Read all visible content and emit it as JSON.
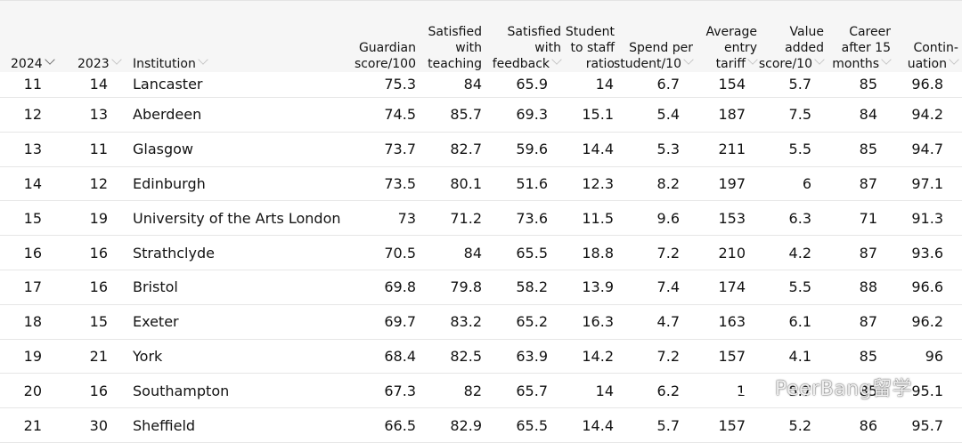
{
  "columns": {
    "y2024": "2024",
    "y2023": "2023",
    "institution": "Institution",
    "guardian": [
      "Guardian",
      "score/100"
    ],
    "teaching": [
      "Satisfied",
      "with",
      "teaching"
    ],
    "feedback": [
      "Satisfied",
      "with",
      "feedback"
    ],
    "ratio": [
      "Student",
      "to staff",
      "ratio"
    ],
    "spend": [
      "Spend per",
      "student/10"
    ],
    "tariff": [
      "Average",
      "entry",
      "tariff"
    ],
    "value": [
      "Value",
      "added",
      "score/10"
    ],
    "career": [
      "Career",
      "after 15",
      "months"
    ],
    "contin": [
      "Contin-",
      "uation"
    ]
  },
  "rows": [
    {
      "y2024": "11",
      "y2023": "14",
      "institution": "Lancaster",
      "guardian": "75.3",
      "teaching": "84",
      "feedback": "65.9",
      "ratio": "14",
      "spend": "6.7",
      "tariff": "154",
      "value": "5.7",
      "career": "85",
      "contin": "96.8"
    },
    {
      "y2024": "12",
      "y2023": "13",
      "institution": "Aberdeen",
      "guardian": "74.5",
      "teaching": "85.7",
      "feedback": "69.3",
      "ratio": "15.1",
      "spend": "5.4",
      "tariff": "187",
      "value": "7.5",
      "career": "84",
      "contin": "94.2"
    },
    {
      "y2024": "13",
      "y2023": "11",
      "institution": "Glasgow",
      "guardian": "73.7",
      "teaching": "82.7",
      "feedback": "59.6",
      "ratio": "14.4",
      "spend": "5.3",
      "tariff": "211",
      "value": "5.5",
      "career": "85",
      "contin": "94.7"
    },
    {
      "y2024": "14",
      "y2023": "12",
      "institution": "Edinburgh",
      "guardian": "73.5",
      "teaching": "80.1",
      "feedback": "51.6",
      "ratio": "12.3",
      "spend": "8.2",
      "tariff": "197",
      "value": "6",
      "career": "87",
      "contin": "97.1"
    },
    {
      "y2024": "15",
      "y2023": "19",
      "institution": "University of the Arts London",
      "guardian": "73",
      "teaching": "71.2",
      "feedback": "73.6",
      "ratio": "11.5",
      "spend": "9.6",
      "tariff": "153",
      "value": "6.3",
      "career": "71",
      "contin": "91.3"
    },
    {
      "y2024": "16",
      "y2023": "16",
      "institution": "Strathclyde",
      "guardian": "70.5",
      "teaching": "84",
      "feedback": "65.5",
      "ratio": "18.8",
      "spend": "7.2",
      "tariff": "210",
      "value": "4.2",
      "career": "87",
      "contin": "93.6"
    },
    {
      "y2024": "17",
      "y2023": "16",
      "institution": "Bristol",
      "guardian": "69.8",
      "teaching": "79.8",
      "feedback": "58.2",
      "ratio": "13.9",
      "spend": "7.4",
      "tariff": "174",
      "value": "5.5",
      "career": "88",
      "contin": "96.6"
    },
    {
      "y2024": "18",
      "y2023": "15",
      "institution": "Exeter",
      "guardian": "69.7",
      "teaching": "83.2",
      "feedback": "65.2",
      "ratio": "16.3",
      "spend": "4.7",
      "tariff": "163",
      "value": "6.1",
      "career": "87",
      "contin": "96.2"
    },
    {
      "y2024": "19",
      "y2023": "21",
      "institution": "York",
      "guardian": "68.4",
      "teaching": "82.5",
      "feedback": "63.9",
      "ratio": "14.2",
      "spend": "7.2",
      "tariff": "157",
      "value": "4.1",
      "career": "85",
      "contin": "96"
    },
    {
      "y2024": "20",
      "y2023": "16",
      "institution": "Southampton",
      "guardian": "67.3",
      "teaching": "82",
      "feedback": "65.7",
      "ratio": "14",
      "spend": "6.2",
      "tariff": "1",
      "value": "5.7",
      "career": "85",
      "contin": "95.1"
    },
    {
      "y2024": "21",
      "y2023": "30",
      "institution": "Sheffield",
      "guardian": "66.5",
      "teaching": "82.9",
      "feedback": "65.5",
      "ratio": "14.4",
      "spend": "5.7",
      "tariff": "157",
      "value": "5.2",
      "career": "86",
      "contin": "95.7"
    }
  ],
  "watermark": {
    "text": "PeerBang留学",
    "icon": "wechat-icon"
  }
}
